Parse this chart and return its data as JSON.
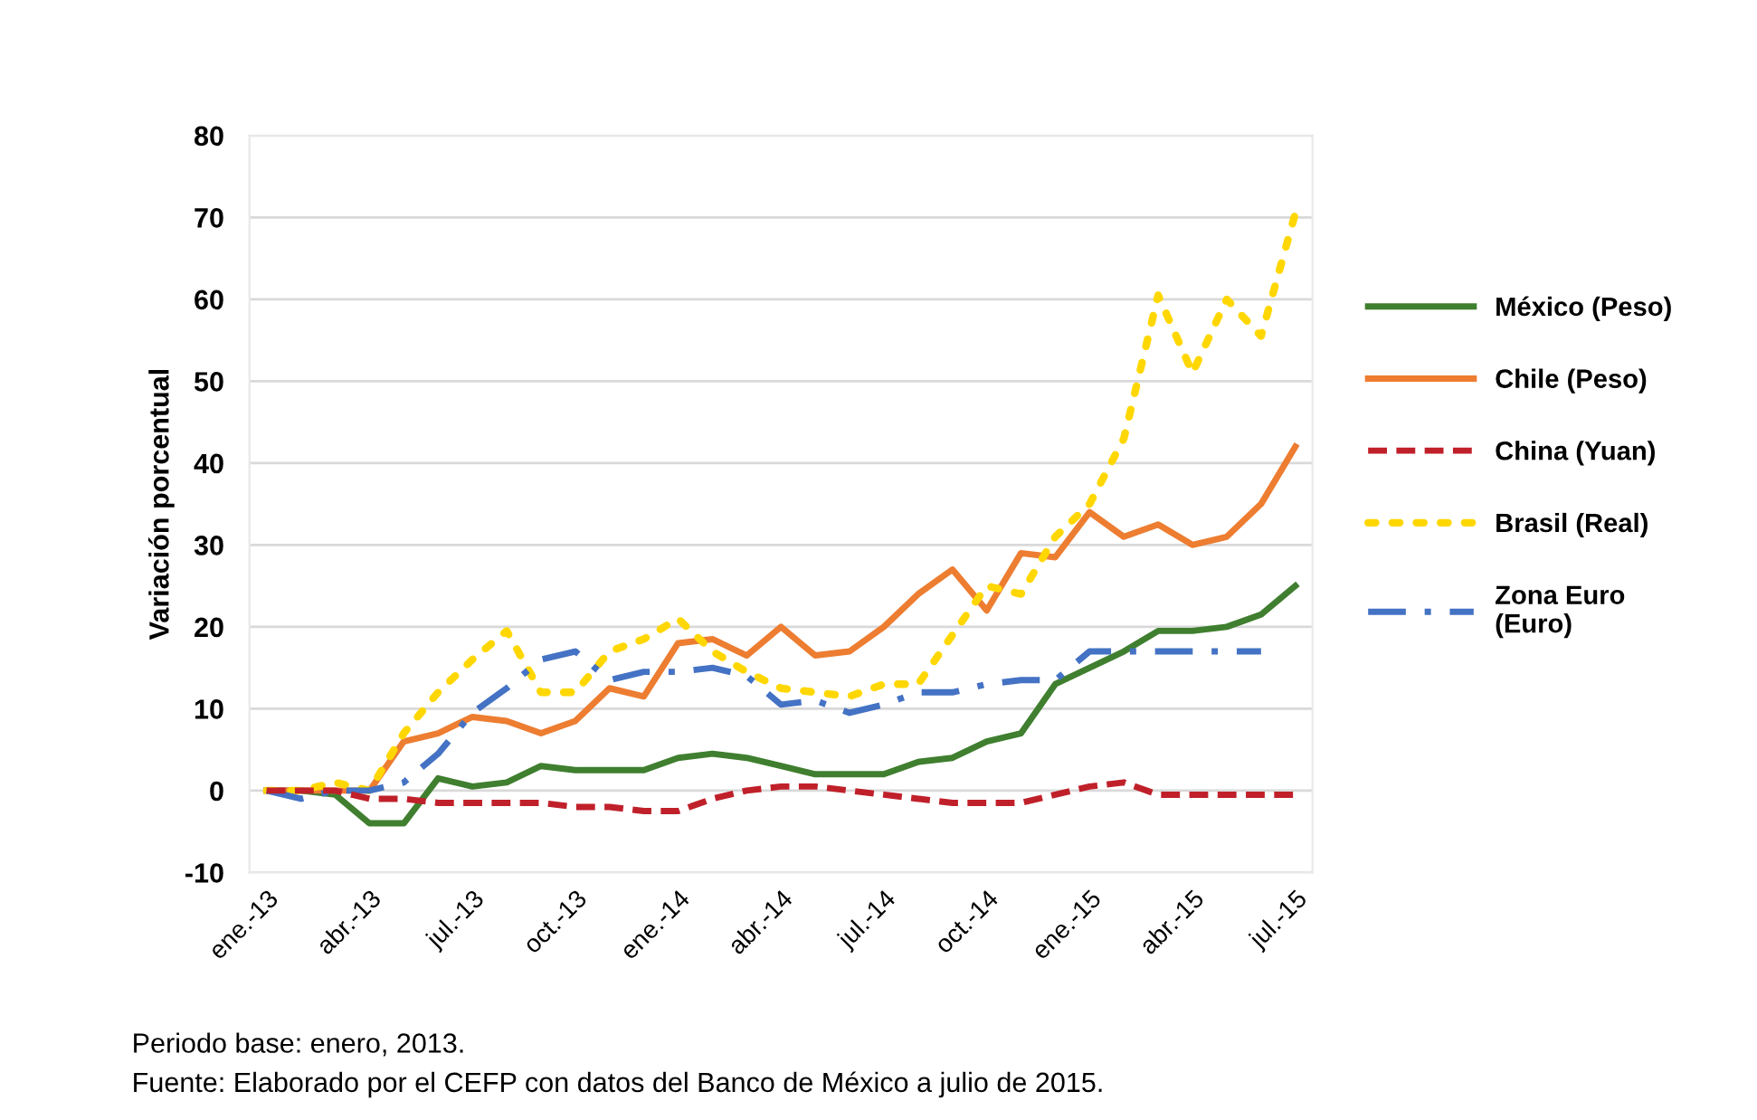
{
  "chart_data": {
    "type": "line",
    "ylabel": "Variación porcentual",
    "categories": [
      "ene.-13",
      null,
      null,
      "abr.-13",
      null,
      null,
      "jul.-13",
      null,
      null,
      "oct.-13",
      null,
      null,
      "ene.-14",
      null,
      null,
      "abr.-14",
      null,
      null,
      "jul.-14",
      null,
      null,
      "oct.-14",
      null,
      null,
      "ene.-15",
      null,
      null,
      "abr.-15",
      null,
      null,
      "jul.-15"
    ],
    "series": [
      {
        "name": "México (Peso)",
        "color": "#3f7f2f",
        "line_style": "solid",
        "values": [
          0,
          0,
          -0.5,
          -4,
          -4,
          1.5,
          0.5,
          1,
          3,
          2.5,
          2.5,
          2.5,
          4,
          4.5,
          4,
          3,
          2,
          2,
          2,
          3.5,
          4,
          6,
          7,
          13,
          15,
          17,
          19.5,
          19.5,
          20,
          21.5,
          25
        ]
      },
      {
        "name": "Chile (Peso)",
        "color": "#ed7d31",
        "line_style": "solid",
        "values": [
          0,
          0,
          0,
          0,
          6,
          7,
          9,
          8.5,
          7,
          8.5,
          12.5,
          11.5,
          18,
          18.5,
          16.5,
          20,
          16.5,
          17,
          20,
          24,
          27,
          22,
          29,
          28.5,
          34,
          31,
          32.5,
          30,
          31,
          35,
          42
        ]
      },
      {
        "name": "China (Yuan)",
        "color": "#c0202a",
        "line_style": "dashed",
        "values": [
          0,
          0,
          0,
          -1,
          -1,
          -1.5,
          -1.5,
          -1.5,
          -1.5,
          -2,
          -2,
          -2.5,
          -2.5,
          -1,
          0,
          0.5,
          0.5,
          0,
          -0.5,
          -1,
          -1.5,
          -1.5,
          -1.5,
          -0.5,
          0.5,
          1,
          -0.5,
          -0.5,
          -0.5,
          -0.5,
          -0.5
        ]
      },
      {
        "name": "Brasil (Real)",
        "color": "#ffd700",
        "line_style": "dotted",
        "values": [
          0,
          0,
          1,
          0,
          7,
          12,
          16,
          19.5,
          12,
          12,
          17,
          18.5,
          21,
          17,
          14.5,
          12.5,
          12,
          11.5,
          13,
          13,
          19,
          25,
          24,
          31,
          35,
          43,
          60.5,
          51,
          60,
          55.5,
          70.5
        ]
      },
      {
        "name": "Zona Euro\n(Euro)",
        "color": "#4472c4",
        "line_style": "dashdot",
        "values": [
          0,
          -1,
          0,
          0,
          1,
          4.5,
          9.5,
          12.5,
          16,
          17,
          13.5,
          14.5,
          14.5,
          15,
          14,
          10.5,
          11,
          9.5,
          10.5,
          12,
          12,
          13,
          13.5,
          13.5,
          17,
          17,
          17,
          17,
          17,
          17,
          null
        ]
      }
    ],
    "ylim": [
      -10,
      80
    ],
    "yticks": [
      -10,
      0,
      10,
      20,
      30,
      40,
      50,
      60,
      70,
      80
    ],
    "grid": "y",
    "legend": "right",
    "annotations": [
      "Periodo base: enero, 2013.",
      "Fuente: Elaborado por el CEFP con datos del Banco de México a julio de 2015."
    ]
  }
}
